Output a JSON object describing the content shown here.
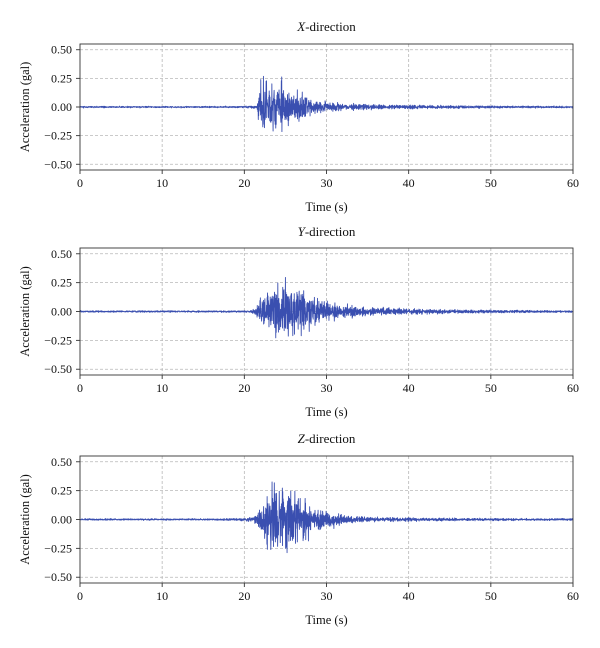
{
  "chart_data": [
    {
      "type": "line",
      "title_letter": "X",
      "title_rest": "-direction",
      "xlabel": "Time (s)",
      "ylabel": "Acceleration (gal)",
      "xlim": [
        0,
        60
      ],
      "ylim": [
        -0.55,
        0.55
      ],
      "xticks": [
        0,
        10,
        20,
        30,
        40,
        50,
        60
      ],
      "xtick_labels": [
        "0",
        "10",
        "20",
        "30",
        "40",
        "50",
        "60"
      ],
      "yticks": [
        0.5,
        0.25,
        0,
        -0.25,
        -0.5
      ],
      "ytick_labels": [
        "0.50",
        "0.25",
        "0.00",
        "−0.25",
        "−0.50"
      ],
      "grid": true,
      "color": "#3a4fb0",
      "series": [
        {
          "x": [
            0,
            5,
            10,
            15,
            20,
            21.5,
            22,
            22.5,
            23,
            23.5,
            24,
            24.5,
            25,
            25.5,
            26,
            27,
            28,
            29,
            30,
            31,
            32,
            33,
            34,
            36,
            38,
            40,
            45,
            50,
            55,
            60
          ],
          "envelope": [
            0.01,
            0.01,
            0.01,
            0.01,
            0.01,
            0.02,
            0.3,
            0.32,
            0.28,
            0.3,
            0.32,
            0.37,
            0.25,
            0.22,
            0.2,
            0.15,
            0.12,
            0.08,
            0.06,
            0.05,
            0.04,
            0.035,
            0.03,
            0.025,
            0.02,
            0.02,
            0.015,
            0.012,
            0.01,
            0.01
          ]
        }
      ]
    },
    {
      "type": "line",
      "title_letter": "Y",
      "title_rest": "-direction",
      "xlabel": "Time (s)",
      "ylabel": "Acceleration (gal)",
      "xlim": [
        0,
        60
      ],
      "ylim": [
        -0.55,
        0.55
      ],
      "xticks": [
        0,
        10,
        20,
        30,
        40,
        50,
        60
      ],
      "xtick_labels": [
        "0",
        "10",
        "20",
        "30",
        "40",
        "50",
        "60"
      ],
      "yticks": [
        0.5,
        0.25,
        0,
        -0.25,
        -0.5
      ],
      "ytick_labels": [
        "0.50",
        "0.25",
        "0.00",
        "−0.25",
        "−0.50"
      ],
      "grid": true,
      "color": "#3a4fb0",
      "series": [
        {
          "x": [
            0,
            5,
            10,
            15,
            20,
            21,
            22,
            22.5,
            23,
            23.5,
            24,
            24.5,
            25,
            25.5,
            26,
            27,
            28,
            29,
            30,
            31,
            32,
            33,
            34,
            36,
            38,
            40,
            45,
            50,
            55,
            60
          ],
          "envelope": [
            0.01,
            0.01,
            0.01,
            0.01,
            0.01,
            0.02,
            0.15,
            0.25,
            0.3,
            0.35,
            0.37,
            0.33,
            0.36,
            0.3,
            0.28,
            0.25,
            0.2,
            0.15,
            0.12,
            0.1,
            0.08,
            0.07,
            0.05,
            0.04,
            0.035,
            0.03,
            0.02,
            0.015,
            0.012,
            0.01
          ]
        }
      ]
    },
    {
      "type": "line",
      "title_letter": "Z",
      "title_rest": "-direction",
      "xlabel": "Time (s)",
      "ylabel": "Acceleration (gal)",
      "xlim": [
        0,
        60
      ],
      "ylim": [
        -0.55,
        0.55
      ],
      "xticks": [
        0,
        10,
        20,
        30,
        40,
        50,
        60
      ],
      "xtick_labels": [
        "0",
        "10",
        "20",
        "30",
        "40",
        "50",
        "60"
      ],
      "yticks": [
        0.5,
        0.25,
        0,
        -0.25,
        -0.5
      ],
      "ytick_labels": [
        "0.50",
        "0.25",
        "0.00",
        "−0.25",
        "−0.50"
      ],
      "grid": true,
      "color": "#3a4fb0",
      "series": [
        {
          "x": [
            0,
            5,
            10,
            15,
            20,
            21,
            21.5,
            22,
            22.5,
            23,
            23.5,
            24,
            24.5,
            25,
            25.5,
            26,
            27,
            28,
            29,
            30,
            31,
            32,
            33,
            34,
            36,
            38,
            40,
            45,
            50,
            55,
            60
          ],
          "envelope": [
            0.01,
            0.01,
            0.01,
            0.01,
            0.015,
            0.03,
            0.06,
            0.15,
            0.3,
            0.45,
            0.5,
            0.35,
            0.4,
            0.5,
            0.42,
            0.3,
            0.25,
            0.18,
            0.13,
            0.1,
            0.08,
            0.06,
            0.04,
            0.03,
            0.025,
            0.02,
            0.02,
            0.015,
            0.012,
            0.01,
            0.01
          ]
        }
      ]
    }
  ]
}
